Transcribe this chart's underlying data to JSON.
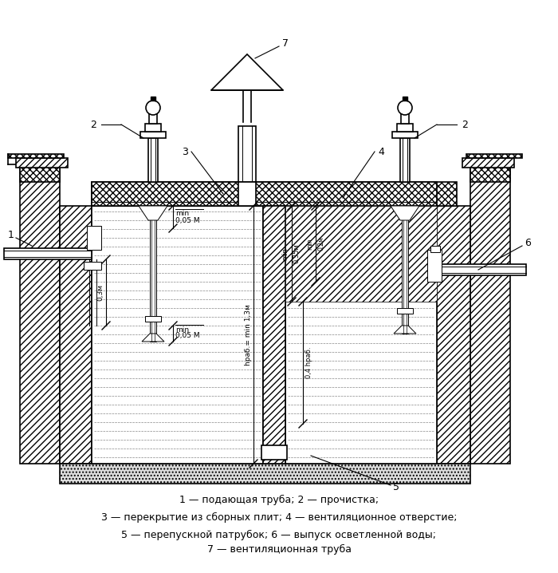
{
  "bg_color": "#ffffff",
  "legend_lines": [
    "1 — подающая труба; 2 — прочистка;",
    "3 — перекрытие из сборных плит; 4 — вентиляционное отверстие;",
    "5 — перепускной патрубок; 6 — выпуск осветленной воды;",
    "7 — вентиляционная труба"
  ]
}
